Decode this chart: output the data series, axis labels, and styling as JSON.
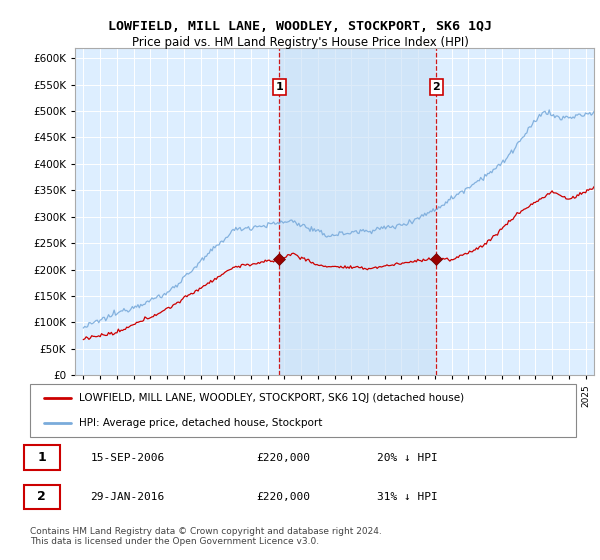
{
  "title": "LOWFIELD, MILL LANE, WOODLEY, STOCKPORT, SK6 1QJ",
  "subtitle": "Price paid vs. HM Land Registry's House Price Index (HPI)",
  "ytick_vals": [
    0,
    50000,
    100000,
    150000,
    200000,
    250000,
    300000,
    350000,
    400000,
    450000,
    500000,
    550000,
    600000
  ],
  "xlim": [
    1994.5,
    2025.5
  ],
  "ylim": [
    0,
    620000
  ],
  "sale1_year": 2006.7,
  "sale1_price": 220000,
  "sale2_year": 2016.08,
  "sale2_price": 220000,
  "legend_line1": "LOWFIELD, MILL LANE, WOODLEY, STOCKPORT, SK6 1QJ (detached house)",
  "legend_line2": "HPI: Average price, detached house, Stockport",
  "info1_label": "1",
  "info1_date": "15-SEP-2006",
  "info1_price": "£220,000",
  "info1_hpi": "20% ↓ HPI",
  "info2_label": "2",
  "info2_date": "29-JAN-2016",
  "info2_price": "£220,000",
  "info2_hpi": "31% ↓ HPI",
  "footnote": "Contains HM Land Registry data © Crown copyright and database right 2024.\nThis data is licensed under the Open Government Licence v3.0.",
  "line_color_red": "#cc0000",
  "line_color_blue": "#7aabdb",
  "marker_color_red": "#990000",
  "vline_color": "#cc0000",
  "background_color": "#ffffff",
  "plot_bg_color": "#ddeeff",
  "shade_color": "#c8dff5"
}
